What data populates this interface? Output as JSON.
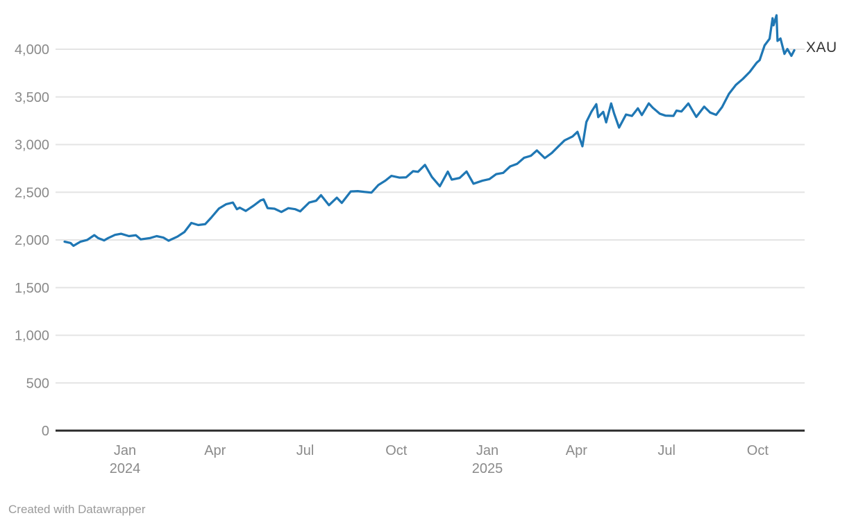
{
  "colors": {
    "line": "#1f77b4",
    "grid": "#e4e4e4",
    "axis_baseline": "#2b2b2b",
    "tick_label": "#8a8a8a",
    "series_label": "#333333",
    "attribution": "#9a9a9a",
    "background": "#ffffff"
  },
  "footer": {
    "attribution": "Created with Datawrapper"
  },
  "chart_data": {
    "type": "line",
    "title": "",
    "grid": "horizontal-only",
    "legend": "direct series label at right end of line",
    "y_axis": {
      "min": 0,
      "max": 4000,
      "tick_step": 500,
      "tick_labels": [
        "0",
        "500",
        "1,000",
        "1,500",
        "2,000",
        "2,500",
        "3,000",
        "3,500",
        "4,000"
      ]
    },
    "x_axis": {
      "range_start": "2023-11-01",
      "range_end": "2025-11-07",
      "ticks": [
        {
          "label": "Jan",
          "year": "2024",
          "date": "2024-01-01"
        },
        {
          "label": "Apr",
          "date": "2024-04-01"
        },
        {
          "label": "Jul",
          "date": "2024-07-01"
        },
        {
          "label": "Oct",
          "date": "2024-10-01"
        },
        {
          "label": "Jan",
          "year": "2025",
          "date": "2025-01-01"
        },
        {
          "label": "Apr",
          "date": "2025-04-01"
        },
        {
          "label": "Jul",
          "date": "2025-07-01"
        },
        {
          "label": "Oct",
          "date": "2025-10-01"
        }
      ]
    },
    "series": [
      {
        "name": "XAU",
        "color": "#1f77b4",
        "points": [
          [
            "2023-11-01",
            1982
          ],
          [
            "2023-11-07",
            1968
          ],
          [
            "2023-11-10",
            1938
          ],
          [
            "2023-11-14",
            1963
          ],
          [
            "2023-11-17",
            1981
          ],
          [
            "2023-11-24",
            2001
          ],
          [
            "2023-12-01",
            2050
          ],
          [
            "2023-12-05",
            2019
          ],
          [
            "2023-12-11",
            1995
          ],
          [
            "2023-12-15",
            2020
          ],
          [
            "2023-12-22",
            2053
          ],
          [
            "2023-12-28",
            2065
          ],
          [
            "2024-01-05",
            2040
          ],
          [
            "2024-01-12",
            2049
          ],
          [
            "2024-01-17",
            2006
          ],
          [
            "2024-01-26",
            2019
          ],
          [
            "2024-02-02",
            2040
          ],
          [
            "2024-02-09",
            2024
          ],
          [
            "2024-02-14",
            1992
          ],
          [
            "2024-02-23",
            2035
          ],
          [
            "2024-03-01",
            2083
          ],
          [
            "2024-03-08",
            2178
          ],
          [
            "2024-03-15",
            2156
          ],
          [
            "2024-03-22",
            2165
          ],
          [
            "2024-03-28",
            2233
          ],
          [
            "2024-04-05",
            2330
          ],
          [
            "2024-04-12",
            2374
          ],
          [
            "2024-04-19",
            2392
          ],
          [
            "2024-04-23",
            2322
          ],
          [
            "2024-04-26",
            2338
          ],
          [
            "2024-05-02",
            2304
          ],
          [
            "2024-05-10",
            2360
          ],
          [
            "2024-05-17",
            2415
          ],
          [
            "2024-05-20",
            2425
          ],
          [
            "2024-05-24",
            2334
          ],
          [
            "2024-05-31",
            2327
          ],
          [
            "2024-06-07",
            2293
          ],
          [
            "2024-06-14",
            2333
          ],
          [
            "2024-06-21",
            2322
          ],
          [
            "2024-06-26",
            2300
          ],
          [
            "2024-07-05",
            2392
          ],
          [
            "2024-07-12",
            2411
          ],
          [
            "2024-07-17",
            2469
          ],
          [
            "2024-07-25",
            2364
          ],
          [
            "2024-08-02",
            2443
          ],
          [
            "2024-08-07",
            2388
          ],
          [
            "2024-08-16",
            2508
          ],
          [
            "2024-08-23",
            2512
          ],
          [
            "2024-08-30",
            2503
          ],
          [
            "2024-09-06",
            2497
          ],
          [
            "2024-09-13",
            2577
          ],
          [
            "2024-09-20",
            2622
          ],
          [
            "2024-09-26",
            2672
          ],
          [
            "2024-10-04",
            2654
          ],
          [
            "2024-10-11",
            2657
          ],
          [
            "2024-10-18",
            2721
          ],
          [
            "2024-10-23",
            2715
          ],
          [
            "2024-10-30",
            2787
          ],
          [
            "2024-11-06",
            2660
          ],
          [
            "2024-11-14",
            2563
          ],
          [
            "2024-11-22",
            2716
          ],
          [
            "2024-11-26",
            2633
          ],
          [
            "2024-12-04",
            2650
          ],
          [
            "2024-12-11",
            2718
          ],
          [
            "2024-12-18",
            2590
          ],
          [
            "2024-12-27",
            2621
          ],
          [
            "2025-01-03",
            2638
          ],
          [
            "2025-01-10",
            2690
          ],
          [
            "2025-01-17",
            2703
          ],
          [
            "2025-01-24",
            2771
          ],
          [
            "2025-01-31",
            2798
          ],
          [
            "2025-02-07",
            2861
          ],
          [
            "2025-02-14",
            2883
          ],
          [
            "2025-02-20",
            2939
          ],
          [
            "2025-02-28",
            2858
          ],
          [
            "2025-03-07",
            2911
          ],
          [
            "2025-03-14",
            2984
          ],
          [
            "2025-03-20",
            3044
          ],
          [
            "2025-03-28",
            3085
          ],
          [
            "2025-04-02",
            3134
          ],
          [
            "2025-04-07",
            2982
          ],
          [
            "2025-04-11",
            3237
          ],
          [
            "2025-04-16",
            3343
          ],
          [
            "2025-04-21",
            3424
          ],
          [
            "2025-04-23",
            3288
          ],
          [
            "2025-04-28",
            3343
          ],
          [
            "2025-05-01",
            3233
          ],
          [
            "2025-05-06",
            3431
          ],
          [
            "2025-05-09",
            3325
          ],
          [
            "2025-05-14",
            3178
          ],
          [
            "2025-05-21",
            3315
          ],
          [
            "2025-05-27",
            3300
          ],
          [
            "2025-06-02",
            3380
          ],
          [
            "2025-06-06",
            3310
          ],
          [
            "2025-06-13",
            3432
          ],
          [
            "2025-06-17",
            3387
          ],
          [
            "2025-06-24",
            3324
          ],
          [
            "2025-06-30",
            3303
          ],
          [
            "2025-07-08",
            3301
          ],
          [
            "2025-07-11",
            3356
          ],
          [
            "2025-07-16",
            3347
          ],
          [
            "2025-07-23",
            3431
          ],
          [
            "2025-07-31",
            3290
          ],
          [
            "2025-08-08",
            3398
          ],
          [
            "2025-08-14",
            3336
          ],
          [
            "2025-08-20",
            3312
          ],
          [
            "2025-08-26",
            3393
          ],
          [
            "2025-09-02",
            3533
          ],
          [
            "2025-09-09",
            3626
          ],
          [
            "2025-09-16",
            3689
          ],
          [
            "2025-09-23",
            3763
          ],
          [
            "2025-09-30",
            3858
          ],
          [
            "2025-10-03",
            3886
          ],
          [
            "2025-10-08",
            4040
          ],
          [
            "2025-10-13",
            4110
          ],
          [
            "2025-10-16",
            4325
          ],
          [
            "2025-10-17",
            4251
          ],
          [
            "2025-10-20",
            4356
          ],
          [
            "2025-10-21",
            4087
          ],
          [
            "2025-10-24",
            4113
          ],
          [
            "2025-10-28",
            3951
          ],
          [
            "2025-10-31",
            4002
          ],
          [
            "2025-11-04",
            3931
          ],
          [
            "2025-11-07",
            3990
          ]
        ]
      }
    ]
  }
}
